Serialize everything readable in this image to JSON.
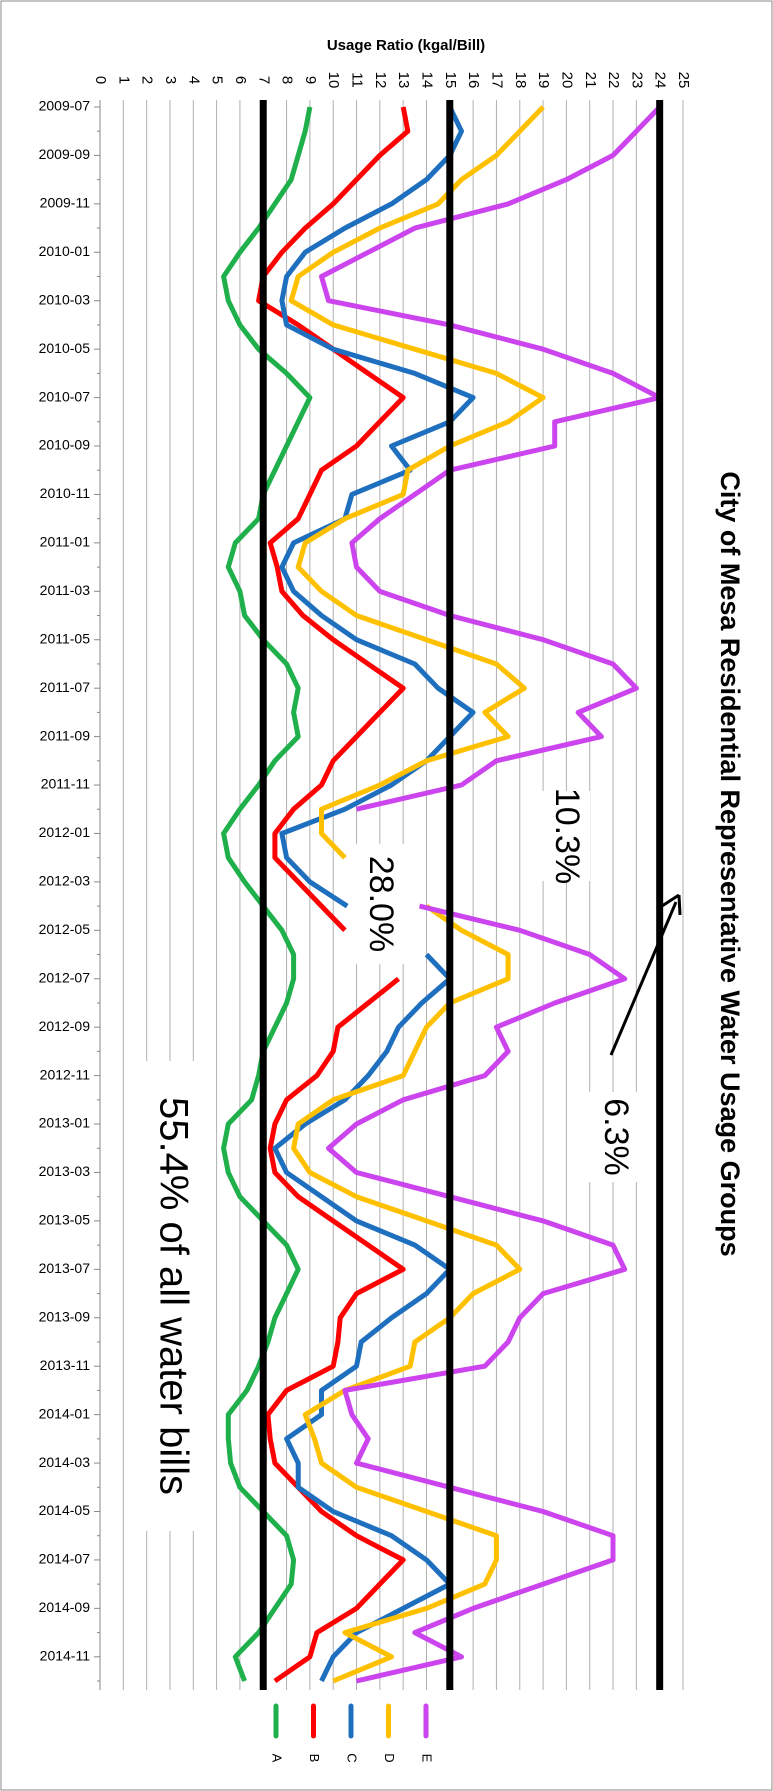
{
  "chart_data": {
    "type": "line",
    "title": "City of Mesa Residential Representative Water Usage Groups",
    "value_axis_label": "Usage Ratio (kgal/Bill)",
    "categories": [
      "2009-07",
      null,
      "2009-09",
      null,
      "2009-11",
      null,
      "2010-01",
      null,
      "2010-03",
      null,
      "2010-05",
      null,
      "2010-07",
      null,
      "2010-09",
      null,
      "2010-11",
      null,
      "2011-01",
      null,
      "2011-03",
      null,
      "2011-05",
      null,
      "2011-07",
      null,
      "2011-09",
      null,
      "2011-11",
      null,
      "2012-01",
      null,
      "2012-03",
      null,
      "2012-05",
      null,
      "2012-07",
      null,
      "2012-09",
      null,
      "2012-11",
      null,
      "2013-01",
      null,
      "2013-03",
      null,
      "2013-05",
      null,
      "2013-07",
      null,
      "2013-09",
      null,
      "2013-11",
      null,
      "2014-01",
      null,
      "2014-03",
      null,
      "2014-05",
      null,
      "2014-07",
      null,
      "2014-09",
      null,
      "2014-11",
      null
    ],
    "series": [
      {
        "name": "A",
        "color": "#1fb04c",
        "values": [
          9.0,
          8.8,
          8.5,
          8.2,
          7.5,
          6.8,
          6.0,
          5.3,
          5.5,
          6.0,
          6.8,
          8.0,
          9.0,
          8.5,
          8.0,
          7.5,
          7.0,
          6.8,
          5.8,
          5.5,
          6.0,
          6.2,
          7.0,
          8.0,
          8.5,
          8.3,
          8.5,
          7.5,
          6.8,
          6.0,
          5.3,
          5.5,
          6.2,
          7.0,
          7.8,
          8.3,
          8.3,
          8.0,
          7.5,
          7.0,
          6.8,
          6.5,
          5.5,
          5.3,
          5.5,
          6.0,
          7.0,
          8.0,
          8.5,
          8.0,
          7.5,
          7.2,
          6.8,
          6.3,
          5.5,
          5.5,
          5.6,
          6.0,
          7.0,
          8.0,
          8.3,
          8.2,
          7.5,
          6.8,
          5.8,
          6.2
        ]
      },
      {
        "name": "B",
        "color": "#ff0000",
        "values": [
          13.0,
          13.2,
          12.0,
          11.0,
          10.0,
          8.8,
          7.8,
          7.0,
          6.8,
          8.5,
          10.0,
          11.5,
          13.0,
          12.0,
          11.0,
          9.5,
          9.0,
          8.5,
          7.3,
          7.6,
          7.8,
          8.7,
          10.0,
          11.5,
          13.0,
          12.0,
          11.0,
          10.0,
          9.5,
          8.3,
          7.5,
          7.5,
          8.5,
          9.5,
          10.5,
          null,
          12.8,
          11.5,
          10.2,
          10.0,
          9.3,
          8.0,
          7.5,
          7.3,
          7.5,
          8.5,
          10.0,
          11.5,
          13.0,
          11.0,
          10.3,
          10.2,
          10.0,
          8.0,
          7.2,
          7.3,
          7.5,
          8.5,
          9.5,
          11.0,
          13.0,
          12.0,
          11.0,
          9.3,
          9.0,
          7.5
        ]
      },
      {
        "name": "C",
        "color": "#1f6fbf",
        "values": [
          15.0,
          15.5,
          15.0,
          14.0,
          12.5,
          10.5,
          8.8,
          8.0,
          7.8,
          8.0,
          10.0,
          13.5,
          16.0,
          15.0,
          12.5,
          13.3,
          10.8,
          10.5,
          8.3,
          7.8,
          8.3,
          9.5,
          11.0,
          13.5,
          14.5,
          16.0,
          15.0,
          14.0,
          12.5,
          10.5,
          7.8,
          8.0,
          9.0,
          10.6,
          null,
          14.0,
          15.0,
          13.8,
          12.8,
          12.3,
          11.5,
          10.5,
          8.8,
          7.5,
          8.0,
          9.5,
          11.0,
          13.5,
          15.0,
          14.0,
          12.5,
          11.2,
          11.0,
          9.5,
          9.5,
          8.0,
          8.5,
          8.5,
          10.0,
          12.5,
          14.0,
          15.0,
          13.0,
          11.0,
          10.0,
          9.5
        ]
      },
      {
        "name": "D",
        "color": "#ffc000",
        "values": [
          19.0,
          18.0,
          17.0,
          15.5,
          14.5,
          12.0,
          10.0,
          8.5,
          8.2,
          10.0,
          13.5,
          17.0,
          19.0,
          17.5,
          15.0,
          13.2,
          13.0,
          10.5,
          8.8,
          8.5,
          9.5,
          11.0,
          14.0,
          17.0,
          18.2,
          16.5,
          17.5,
          14.0,
          12.0,
          9.5,
          9.5,
          10.5,
          null,
          14.0,
          15.5,
          17.5,
          17.5,
          15.0,
          14.0,
          13.5,
          13.0,
          10.0,
          8.5,
          8.3,
          9.0,
          11.0,
          14.0,
          17.0,
          18.0,
          16.0,
          15.0,
          13.5,
          13.3,
          10.5,
          8.8,
          9.2,
          9.5,
          11.0,
          14.0,
          17.0,
          17.0,
          16.5,
          14.0,
          10.5,
          12.5,
          10.0
        ]
      },
      {
        "name": "E",
        "color": "#cc44ee",
        "values": [
          24.0,
          23.0,
          22.0,
          20.0,
          17.5,
          13.5,
          11.5,
          9.5,
          9.8,
          15.0,
          19.0,
          22.0,
          24.0,
          19.5,
          19.5,
          15.0,
          13.5,
          12.0,
          10.8,
          11.0,
          12.0,
          15.0,
          19.0,
          22.0,
          23.0,
          20.5,
          21.5,
          17.0,
          15.5,
          11.0,
          null,
          null,
          null,
          13.7,
          18.0,
          21.0,
          22.5,
          19.5,
          17.0,
          17.5,
          16.5,
          13.0,
          11.0,
          9.8,
          11.0,
          15.0,
          19.0,
          22.0,
          22.5,
          19.0,
          18.0,
          17.5,
          16.5,
          10.5,
          10.8,
          11.5,
          11.0,
          15.0,
          19.0,
          22.0,
          22.0,
          19.0,
          16.0,
          13.5,
          15.5,
          11.0
        ]
      }
    ],
    "reference_lines": [
      7,
      15,
      24
    ],
    "xlim": [
      0,
      25
    ],
    "xticks": [
      0,
      1,
      2,
      3,
      4,
      5,
      6,
      7,
      8,
      9,
      10,
      11,
      12,
      13,
      14,
      15,
      16,
      17,
      18,
      19,
      20,
      21,
      22,
      23,
      24,
      25
    ],
    "grid": true,
    "annotations": [
      "10.3%",
      "28.0%",
      "6.3%",
      "55.4% of all water bills"
    ]
  }
}
